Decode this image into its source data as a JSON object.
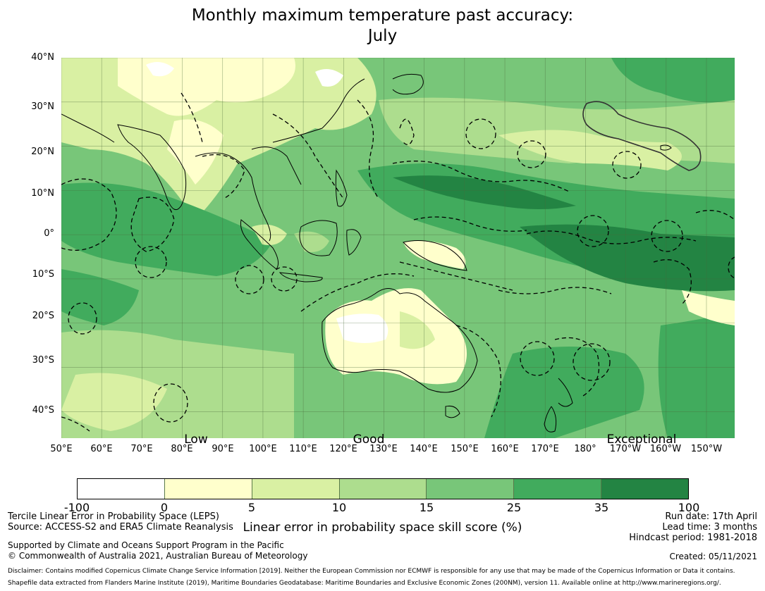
{
  "title": {
    "line1": "Monthly maximum temperature past accuracy:",
    "line2": "July"
  },
  "map": {
    "lat_labels": [
      "40°N",
      "30°N",
      "20°N",
      "10°N",
      "0°",
      "10°S",
      "20°S",
      "30°S",
      "40°S"
    ],
    "lat_values": [
      40,
      30,
      20,
      10,
      0,
      -10,
      -20,
      -30,
      -40
    ],
    "lon_labels": [
      "50°E",
      "60°E",
      "70°E",
      "80°E",
      "90°E",
      "100°E",
      "110°E",
      "120°E",
      "130°E",
      "140°E",
      "150°E",
      "160°E",
      "170°E",
      "180°",
      "170°W",
      "160°W",
      "150°W"
    ],
    "lon_values": [
      50,
      60,
      70,
      80,
      90,
      100,
      110,
      120,
      130,
      140,
      150,
      160,
      170,
      180,
      190,
      200,
      210
    ],
    "extent": {
      "lon_min": 50,
      "lon_max": 217,
      "lat_min": -46,
      "lat_max": 40
    },
    "category_labels": [
      "Low",
      "Good",
      "Exceptional"
    ],
    "category_lon": [
      77,
      118,
      184
    ]
  },
  "colorbar": {
    "colors": [
      "#ffffff",
      "#ffffcc",
      "#d9f0a3",
      "#addd8e",
      "#78c679",
      "#41ab5d",
      "#238443"
    ],
    "ticks": [
      "-100",
      "0",
      "5",
      "10",
      "15",
      "25",
      "35",
      "100"
    ],
    "label": "Linear error in probability space skill score (%)"
  },
  "info": {
    "method": "Tercile Linear Error in Probability Space (LEPS)",
    "source": "Source: ACCESS-S2 and ERA5 Climate Reanalysis",
    "support": "Supported by Climate and Oceans Support Program in the Pacific",
    "copyright": "© Commonwealth of Australia 2021, Australian Bureau of Meteorology",
    "run_date": "Run date: 17th April",
    "lead_time": "Lead time: 3 months",
    "hindcast": "Hindcast period: 1981-2018",
    "created": "Created: 05/11/2021",
    "disclaimer": "Disclaimer: Contains modified Copernicus Climate Change Service Information [2019]. Neither the European Commission nor ECMWF is responsible for any use that may be made of the Copernicus Information or Data it contains.",
    "shapefile": "Shapefile data extracted from Flanders Marine Institute (2019), Maritime Boundaries Geodatabase: Maritime Boundaries and Exclusive Economic Zones (200NM), version 11. Available online at http://www.marineregions.org/."
  }
}
